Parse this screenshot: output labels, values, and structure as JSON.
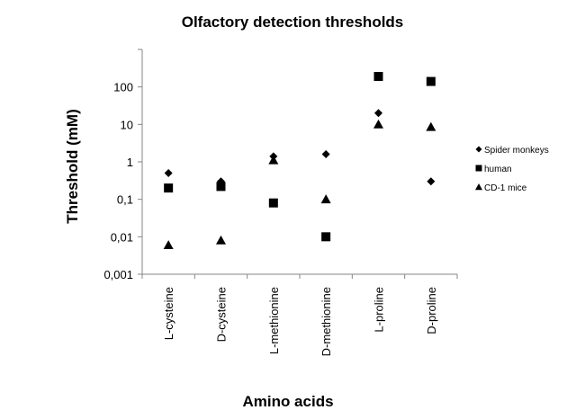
{
  "chart_data": {
    "type": "scatter",
    "title": "Olfactory detection thresholds",
    "xlabel": "Amino acids",
    "ylabel": "Threshold (mM)",
    "yscale": "log",
    "ylim": [
      0.001,
      1000
    ],
    "ytick_labels": [
      "0,001",
      "0,01",
      "0,1",
      "1",
      "10",
      "100",
      ""
    ],
    "categories": [
      "L-cysteine",
      "D-cysteine",
      "L-methionine",
      "D-methionine",
      "L-proline",
      "D-proline"
    ],
    "legend_position": "right",
    "grid": false,
    "series": [
      {
        "name": "Spider monkeys",
        "marker": "diamond",
        "color": "#000000",
        "values": [
          0.5,
          0.3,
          1.4,
          1.6,
          20,
          0.3
        ]
      },
      {
        "name": "human",
        "marker": "square",
        "color": "#000000",
        "values": [
          0.2,
          0.22,
          0.08,
          0.01,
          190,
          140
        ]
      },
      {
        "name": "CD-1 mice",
        "marker": "triangle",
        "color": "#000000",
        "values": [
          0.006,
          0.008,
          1.1,
          0.1,
          10,
          8.5
        ]
      }
    ]
  }
}
